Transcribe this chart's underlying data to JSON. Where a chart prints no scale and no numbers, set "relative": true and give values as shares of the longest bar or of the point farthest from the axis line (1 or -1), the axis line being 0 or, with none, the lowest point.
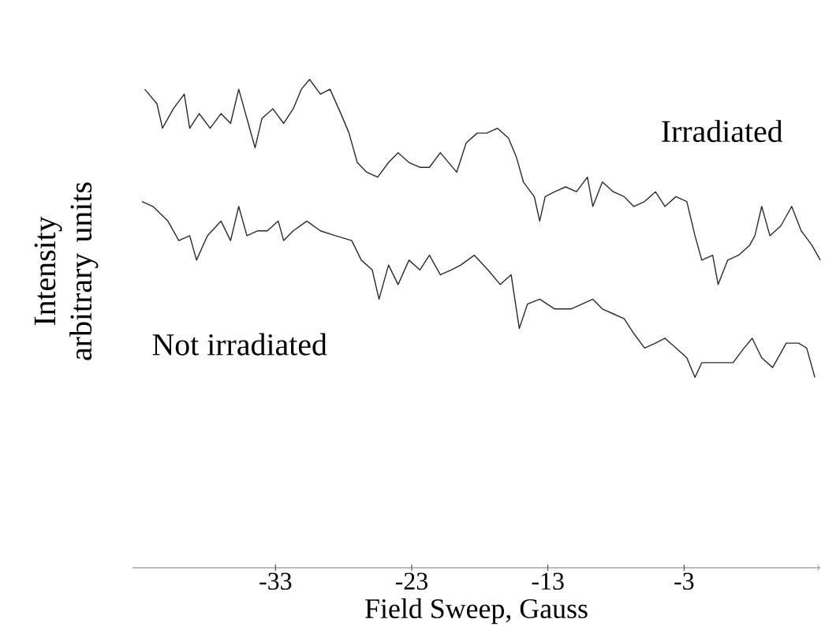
{
  "chart_data": {
    "type": "line",
    "relative": true,
    "xlabel": "Field Sweep, Gauss",
    "ylabel": "Intensity arbitrary units",
    "xlim": [
      -43.5,
      7.0
    ],
    "xticks": [
      -33,
      -23,
      -13,
      -3
    ],
    "grid": false,
    "legend": false,
    "marker": "none",
    "line_style": "solid",
    "series": [
      {
        "name": "Irradiated",
        "color": "#2a2a2a",
        "x": [
          -42.6,
          -41.7,
          -41.3,
          -40.5,
          -39.7,
          -39.3,
          -38.6,
          -37.8,
          -37.0,
          -36.3,
          -35.7,
          -35.1,
          -34.5,
          -34.0,
          -33.2,
          -32.4,
          -31.7,
          -31.1,
          -30.5,
          -29.7,
          -29.0,
          -28.2,
          -27.6,
          -27.0,
          -26.3,
          -25.5,
          -24.7,
          -24.0,
          -23.2,
          -22.4,
          -21.7,
          -20.9,
          -19.7,
          -19.0,
          -18.2,
          -17.5,
          -16.7,
          -15.9,
          -15.3,
          -14.8,
          -14.0,
          -13.6,
          -13.2,
          -12.5,
          -11.7,
          -10.9,
          -10.1,
          -9.7,
          -9.0,
          -8.2,
          -7.4,
          -6.7,
          -5.9,
          -5.1,
          -4.4,
          -3.6,
          -2.8,
          -2.2,
          -1.7,
          -0.9,
          -0.5,
          0.2,
          1.0,
          1.8,
          2.2,
          2.7,
          3.3,
          4.1,
          4.9,
          5.6,
          6.4,
          7.0
        ],
        "values": [
          0.98,
          0.95,
          0.9,
          0.94,
          0.97,
          0.9,
          0.93,
          0.9,
          0.93,
          0.91,
          0.98,
          0.92,
          0.86,
          0.92,
          0.94,
          0.91,
          0.94,
          0.98,
          1.0,
          0.97,
          0.98,
          0.93,
          0.89,
          0.83,
          0.81,
          0.8,
          0.83,
          0.85,
          0.83,
          0.82,
          0.82,
          0.85,
          0.81,
          0.87,
          0.89,
          0.89,
          0.9,
          0.88,
          0.84,
          0.79,
          0.76,
          0.71,
          0.76,
          0.77,
          0.78,
          0.77,
          0.8,
          0.74,
          0.79,
          0.77,
          0.76,
          0.74,
          0.75,
          0.77,
          0.74,
          0.76,
          0.75,
          0.68,
          0.63,
          0.64,
          0.58,
          0.63,
          0.64,
          0.66,
          0.68,
          0.74,
          0.68,
          0.7,
          0.74,
          0.69,
          0.66,
          0.63
        ]
      },
      {
        "name": "Not irradiated",
        "color": "#2a2a2a",
        "x": [
          -42.8,
          -42.0,
          -40.9,
          -40.1,
          -39.3,
          -38.8,
          -38.0,
          -37.0,
          -36.3,
          -35.7,
          -35.1,
          -34.3,
          -33.6,
          -32.8,
          -32.4,
          -31.7,
          -30.7,
          -29.7,
          -28.6,
          -27.4,
          -26.7,
          -25.9,
          -25.4,
          -24.7,
          -24.0,
          -23.2,
          -22.4,
          -21.7,
          -20.9,
          -20.1,
          -19.4,
          -18.4,
          -17.4,
          -16.5,
          -15.7,
          -15.1,
          -14.5,
          -13.6,
          -12.5,
          -11.3,
          -10.5,
          -9.7,
          -9.0,
          -8.2,
          -7.4,
          -6.7,
          -5.9,
          -5.1,
          -4.4,
          -3.6,
          -2.8,
          -2.2,
          -1.7,
          -0.5,
          0.6,
          1.4,
          2.0,
          2.7,
          3.5,
          4.5,
          5.4,
          6.0,
          6.6
        ],
        "values": [
          0.75,
          0.74,
          0.71,
          0.67,
          0.68,
          0.63,
          0.68,
          0.71,
          0.67,
          0.74,
          0.68,
          0.69,
          0.69,
          0.71,
          0.67,
          0.69,
          0.71,
          0.69,
          0.68,
          0.67,
          0.63,
          0.61,
          0.55,
          0.62,
          0.58,
          0.63,
          0.61,
          0.64,
          0.6,
          0.61,
          0.62,
          0.64,
          0.61,
          0.58,
          0.6,
          0.49,
          0.54,
          0.55,
          0.53,
          0.53,
          0.54,
          0.55,
          0.53,
          0.52,
          0.51,
          0.48,
          0.45,
          0.46,
          0.47,
          0.45,
          0.43,
          0.39,
          0.42,
          0.42,
          0.42,
          0.45,
          0.47,
          0.43,
          0.41,
          0.46,
          0.46,
          0.45,
          0.39
        ]
      }
    ]
  }
}
